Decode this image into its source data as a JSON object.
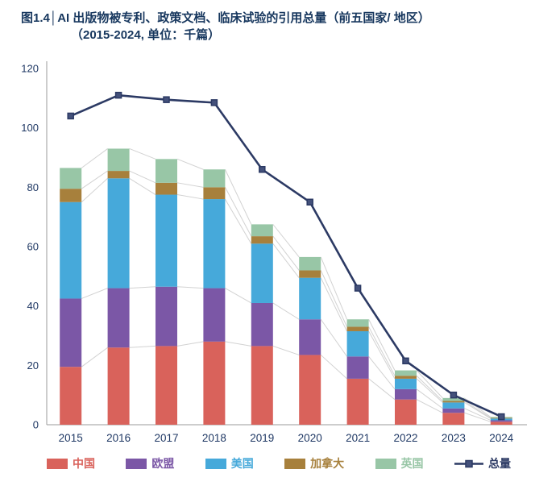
{
  "title": {
    "line1": "图1.4│AI 出版物被专利、政策文档、临床试验的引用总量（前五国家/ 地区）",
    "line2": "（2015-2024, 单位：千篇）"
  },
  "chart_data": {
    "type": "bar",
    "stacked": true,
    "title": "AI 出版物被专利、政策文档、临床试验的引用总量（前五国家/ 地区）",
    "subtitle": "（2015-2024, 单位：千篇）",
    "categories": [
      "2015",
      "2016",
      "2017",
      "2018",
      "2019",
      "2020",
      "2021",
      "2022",
      "2023",
      "2024"
    ],
    "series": [
      {
        "name": "中国",
        "color": "#d9625b",
        "values": [
          19.5,
          26,
          26.5,
          28,
          26.5,
          23.5,
          15.5,
          8.5,
          4,
          1
        ]
      },
      {
        "name": "欧盟",
        "color": "#7b57a6",
        "values": [
          23,
          20,
          20,
          18,
          14.5,
          12,
          7.5,
          3.5,
          1.5,
          0.5
        ]
      },
      {
        "name": "美国",
        "color": "#46a9da",
        "values": [
          32.5,
          37,
          31,
          30,
          20,
          14,
          8.5,
          3.5,
          2,
          0.6
        ]
      },
      {
        "name": "加拿大",
        "color": "#a7803c",
        "values": [
          4.5,
          2.5,
          4,
          4,
          2.5,
          2.5,
          1.5,
          1,
          0.5,
          0.2
        ]
      },
      {
        "name": "英国",
        "color": "#98c6a6",
        "values": [
          7,
          7.5,
          8,
          6,
          4,
          4.5,
          2.5,
          1.8,
          1,
          0.3
        ]
      }
    ],
    "line_series": {
      "name": "总量",
      "color": "#2c3a64",
      "values": [
        104,
        111,
        109.5,
        108.5,
        86,
        75,
        46,
        21.5,
        10,
        2.7
      ]
    },
    "ylim": [
      0,
      120
    ],
    "yticks": [
      0,
      20,
      40,
      60,
      80,
      100,
      120
    ],
    "grid": false,
    "legend_position": "bottom"
  },
  "colors": {
    "title": "#17375e",
    "axis_text": "#1f3864",
    "axis_line": "#9b9b9b",
    "connector_line": "#d2d2d2",
    "marker_fill": "#44517b",
    "background": "#ffffff"
  }
}
